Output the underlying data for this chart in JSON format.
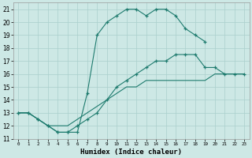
{
  "xlabel": "Humidex (Indice chaleur)",
  "bg_color": "#cde8e5",
  "grid_color": "#aacfcc",
  "line_color": "#1e7b6e",
  "xlim": [
    -0.5,
    23.5
  ],
  "ylim": [
    11,
    21.5
  ],
  "xticks": [
    0,
    1,
    2,
    3,
    4,
    5,
    6,
    7,
    8,
    9,
    10,
    11,
    12,
    13,
    14,
    15,
    16,
    17,
    18,
    19,
    20,
    21,
    22,
    23
  ],
  "yticks": [
    11,
    12,
    13,
    14,
    15,
    16,
    17,
    18,
    19,
    20,
    21
  ],
  "line1_x": [
    0,
    1,
    2,
    3,
    4,
    5,
    6,
    7,
    8,
    9,
    10,
    11,
    12,
    13,
    14,
    15,
    16,
    17,
    18,
    19
  ],
  "line1_y": [
    13,
    13,
    12.5,
    12,
    11.5,
    11.5,
    11.5,
    14.5,
    19,
    20,
    20.5,
    21,
    21,
    20.5,
    21,
    21,
    20.5,
    19.5,
    19,
    18.5
  ],
  "line2_x": [
    0,
    1,
    2,
    3,
    4,
    5,
    6,
    7,
    8,
    9,
    10,
    11,
    12,
    13,
    14,
    15,
    16,
    17,
    18,
    19,
    20,
    21,
    22,
    23
  ],
  "line2_y": [
    13,
    13,
    12.5,
    12,
    11.5,
    11.5,
    12,
    12.5,
    13,
    14,
    15,
    15.5,
    16,
    16.5,
    17,
    17,
    17.5,
    17.5,
    17.5,
    16.5,
    16.5,
    16,
    16,
    16
  ],
  "line3_x": [
    0,
    1,
    2,
    3,
    4,
    5,
    6,
    7,
    8,
    9,
    10,
    11,
    12,
    13,
    14,
    15,
    16,
    17,
    18,
    19,
    20,
    21,
    22,
    23
  ],
  "line3_y": [
    13,
    13,
    12.5,
    12,
    12,
    12,
    12.5,
    13,
    13.5,
    14,
    14.5,
    15,
    15,
    15.5,
    15.5,
    15.5,
    15.5,
    15.5,
    15.5,
    15.5,
    16,
    16,
    16,
    16
  ]
}
